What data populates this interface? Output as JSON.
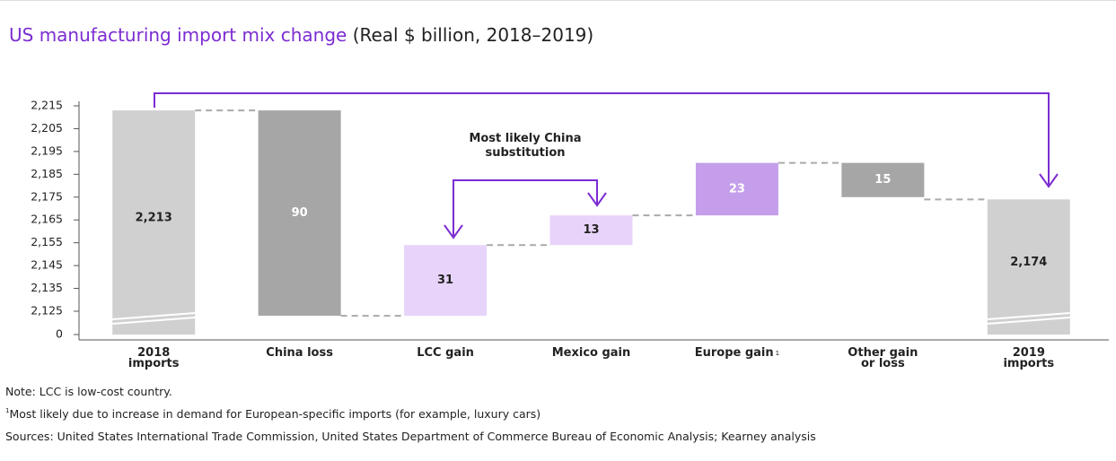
{
  "chart_data": {
    "type": "waterfall",
    "title": "US manufacturing import mix change",
    "subtitle": "(Real $ billion, 2018–2019)",
    "categories": [
      "2018 imports",
      "China loss",
      "LCC gain",
      "Mexico gain",
      "Europe gain",
      "Other gain or loss",
      "2019 imports"
    ],
    "category_footnotes": [
      null,
      null,
      null,
      null,
      "1",
      null,
      null
    ],
    "values": [
      2213,
      -90,
      31,
      13,
      23,
      -15,
      2174
    ],
    "value_labels": [
      "2,213",
      "90",
      "31",
      "13",
      "23",
      "15",
      "2,174"
    ],
    "totals": [
      true,
      false,
      false,
      false,
      false,
      false,
      true
    ],
    "colors": [
      "#d0d0d0",
      "#a6a6a6",
      "#e8d4fa",
      "#e8d4fa",
      "#c49eea",
      "#a6a6a6",
      "#d0d0d0"
    ],
    "label_colors": [
      "#222222",
      "#ffffff",
      "#222222",
      "#222222",
      "#ffffff",
      "#ffffff",
      "#222222"
    ],
    "ylim": [
      0,
      2215
    ],
    "yticks": [
      0,
      {
        "value": 2125,
        "label": "2,125"
      },
      {
        "value": 2135,
        "label": "2,135"
      },
      {
        "value": 2145,
        "label": "2,145"
      },
      {
        "value": 2155,
        "label": "2,155"
      },
      {
        "value": 2165,
        "label": "2,165"
      },
      {
        "value": 2175,
        "label": "2,175"
      },
      {
        "value": 2185,
        "label": "2,185"
      },
      {
        "value": 2195,
        "label": "2,195"
      },
      {
        "value": 2205,
        "label": "2,205"
      },
      {
        "value": 2215,
        "label": "2,215"
      }
    ],
    "axis_break": true,
    "annotation": "Most likely China substitution",
    "notes": [
      "Note: LCC is low-cost country.",
      "Most likely due to increase in demand for European-specific imports (for example, luxury cars)",
      "Sources: United States International Trade Commission, United States Department of Commerce Bureau of Economic Analysis; Kearney analysis"
    ],
    "note_markers": [
      null,
      "1",
      null
    ]
  }
}
